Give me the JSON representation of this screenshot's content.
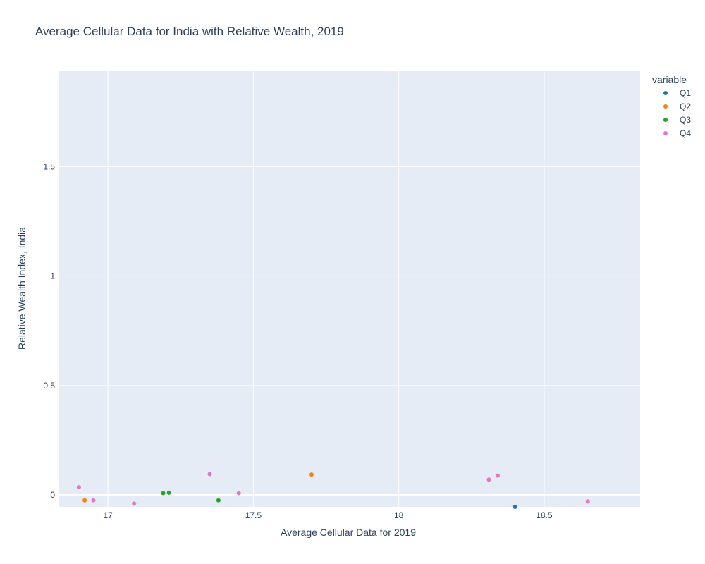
{
  "chart_data": {
    "type": "scatter",
    "title": "Average Cellular Data for India with Relative Wealth, 2019",
    "xlabel": "Average Cellular Data for 2019",
    "ylabel": "Relative Wealth Index, India",
    "xlim": [
      16.83,
      18.83
    ],
    "ylim": [
      -0.055,
      1.94
    ],
    "x_ticks": [
      17,
      17.5,
      18,
      18.5
    ],
    "x_tick_labels": [
      "17",
      "17.5",
      "18",
      "18.5"
    ],
    "y_ticks": [
      0,
      0.5,
      1,
      1.5
    ],
    "y_tick_labels": [
      "0",
      "0.5",
      "1",
      "1.5"
    ],
    "grid": true,
    "legend_title": "variable",
    "legend_position": "top-right-outside",
    "series": [
      {
        "name": "Q1",
        "color": "#1f77b4",
        "points": [
          [
            18.4,
            -0.055
          ]
        ]
      },
      {
        "name": "Q2",
        "color": "#ff7f0e",
        "points": [
          [
            16.92,
            -0.025
          ],
          [
            17.7,
            0.093
          ]
        ]
      },
      {
        "name": "Q3",
        "color": "#2ca02c",
        "points": [
          [
            17.19,
            0.008
          ],
          [
            17.21,
            0.01
          ],
          [
            17.38,
            -0.025
          ]
        ]
      },
      {
        "name": "Q4",
        "color": "#e377c2",
        "points": [
          [
            16.9,
            0.035
          ],
          [
            16.95,
            -0.025
          ],
          [
            17.09,
            -0.04
          ],
          [
            17.35,
            0.095
          ],
          [
            17.45,
            0.008
          ],
          [
            18.31,
            0.07
          ],
          [
            18.34,
            0.088
          ],
          [
            18.65,
            -0.03
          ]
        ]
      }
    ]
  }
}
